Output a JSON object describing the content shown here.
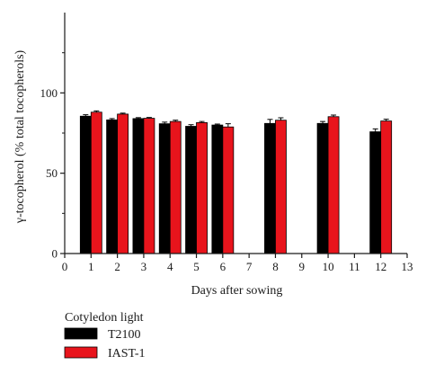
{
  "chart_data": {
    "type": "bar",
    "xlabel": "Days after sowing",
    "ylabel": "γ-tocopherol (% total tocopherols)",
    "xlim": [
      0,
      13
    ],
    "ylim": [
      0,
      150
    ],
    "x_ticks": [
      "0",
      "1",
      "2",
      "3",
      "4",
      "5",
      "6",
      "7",
      "8",
      "9",
      "10",
      "11",
      "12",
      "13"
    ],
    "y_ticks": [
      "0",
      "50",
      "100"
    ],
    "x": [
      1,
      2,
      3,
      4,
      5,
      6,
      8,
      10,
      12
    ],
    "series": [
      {
        "name": "T2100",
        "color": "#000000",
        "values": [
          85.5,
          83.2,
          84.0,
          80.8,
          79.2,
          80.0,
          81.0,
          81.0,
          75.8
        ],
        "errors": [
          0.9,
          0.8,
          0.6,
          1.0,
          1.0,
          0.6,
          2.5,
          1.2,
          1.8
        ]
      },
      {
        "name": "IAST-1",
        "color": "#e8141c",
        "values": [
          88.0,
          86.8,
          84.2,
          82.2,
          81.5,
          78.8,
          83.0,
          85.2,
          82.5
        ],
        "errors": [
          0.8,
          0.6,
          0.5,
          0.8,
          0.7,
          2.0,
          1.5,
          1.0,
          1.1
        ]
      }
    ],
    "legend": {
      "title": "Cotyledon light",
      "position": "bottom-left"
    }
  }
}
